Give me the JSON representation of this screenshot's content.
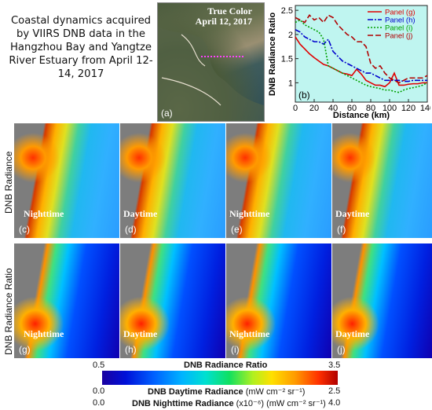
{
  "title": "Coastal dynamics acquired by VIIRS DNB data in the Hangzhou Bay and Yangtze River Estuary from April 12-14, 2017",
  "panel_a": {
    "caption_line1": "True Color",
    "caption_line2": "April 12, 2017",
    "label": "(a)"
  },
  "row_labels": {
    "top": "DNB Radiance",
    "bottom": "DNB Radiance Ratio"
  },
  "tiles": [
    {
      "label": "(c)",
      "text": "Nighttime",
      "style": "radiance"
    },
    {
      "label": "(d)",
      "text": "Daytime",
      "style": "radiance"
    },
    {
      "label": "(e)",
      "text": "Nighttime",
      "style": "radiance"
    },
    {
      "label": "(f)",
      "text": "Daytime",
      "style": "radiance"
    },
    {
      "label": "(g)",
      "text": "Nighttime",
      "style": "ratio"
    },
    {
      "label": "(h)",
      "text": "Daytime",
      "style": "ratio"
    },
    {
      "label": "(i)",
      "text": "Nighttime",
      "style": "ratio"
    },
    {
      "label": "(j)",
      "text": "Daytime",
      "style": "ratio"
    }
  ],
  "colorbar": {
    "ratio_min": "0.5",
    "ratio_label": "DNB Radiance Ratio",
    "ratio_max": "3.5",
    "day_min": "0.0",
    "day_label": "DNB Daytime Radiance",
    "day_units": "(mW cm⁻² sr⁻¹)",
    "day_max": "2.5",
    "night_min": "0.0",
    "night_label": "DNB Nighttime Radiance",
    "night_units": "(x10⁻⁶) (mW cm⁻² sr⁻¹)",
    "night_max": "4.0"
  },
  "chart_data": {
    "type": "line",
    "panel_label": "(b)",
    "xlabel": "Distance (km)",
    "ylabel": "DNB Radiance Ratio",
    "xlim": [
      0,
      140
    ],
    "ylim": [
      0.6,
      2.6
    ],
    "xticks": [
      0,
      20,
      40,
      60,
      80,
      100,
      120,
      140
    ],
    "yticks": [
      1,
      1.5,
      2,
      2.5
    ],
    "legend_position": "top-right",
    "series": [
      {
        "name": "Panel (g)",
        "color": "#e00000",
        "dash": "solid",
        "x": [
          0,
          5,
          10,
          15,
          20,
          25,
          30,
          35,
          40,
          45,
          50,
          55,
          60,
          65,
          70,
          75,
          80,
          85,
          90,
          95,
          100,
          105,
          110,
          115,
          120,
          125,
          130,
          135,
          140
        ],
        "y": [
          1.95,
          1.8,
          1.7,
          1.6,
          1.52,
          1.45,
          1.38,
          1.35,
          1.3,
          1.25,
          1.2,
          1.18,
          1.15,
          1.28,
          1.18,
          1.05,
          1.0,
          0.95,
          0.95,
          0.92,
          1.0,
          1.2,
          0.95,
          0.95,
          0.97,
          0.98,
          0.98,
          1.0,
          1.0
        ]
      },
      {
        "name": "Panel (h)",
        "color": "#0000cc",
        "dash": "dashdot",
        "x": [
          0,
          5,
          10,
          15,
          20,
          25,
          30,
          35,
          40,
          45,
          50,
          55,
          60,
          65,
          70,
          75,
          80,
          85,
          90,
          95,
          100,
          105,
          110,
          115,
          120,
          125,
          130,
          135,
          140
        ],
        "y": [
          2.1,
          2.05,
          1.95,
          1.9,
          1.85,
          1.85,
          1.8,
          1.9,
          1.65,
          1.55,
          1.45,
          1.4,
          1.35,
          1.3,
          1.25,
          1.2,
          1.2,
          1.15,
          1.1,
          1.05,
          1.05,
          1.05,
          1.05,
          1.03,
          1.03,
          1.05,
          1.05,
          1.05,
          1.05
        ]
      },
      {
        "name": "Panel (i)",
        "color": "#00a000",
        "dash": "dotted",
        "x": [
          0,
          5,
          10,
          15,
          20,
          25,
          30,
          35,
          40,
          45,
          50,
          55,
          60,
          65,
          70,
          75,
          80,
          85,
          90,
          95,
          100,
          105,
          110,
          115,
          120,
          125,
          130,
          135,
          140
        ],
        "y": [
          2.25,
          2.3,
          2.2,
          2.15,
          2.1,
          2.05,
          1.9,
          1.35,
          1.3,
          1.25,
          1.2,
          1.15,
          1.1,
          1.05,
          1.0,
          0.95,
          0.92,
          0.9,
          0.88,
          0.85,
          0.85,
          0.82,
          0.8,
          0.85,
          0.88,
          0.9,
          0.92,
          0.95,
          1.0
        ]
      },
      {
        "name": "Panel (j)",
        "color": "#b00000",
        "dash": "dashed",
        "x": [
          0,
          5,
          10,
          15,
          20,
          25,
          30,
          35,
          40,
          45,
          50,
          55,
          60,
          65,
          70,
          75,
          80,
          85,
          90,
          95,
          100,
          105,
          110,
          115,
          120,
          125,
          130,
          135,
          140
        ],
        "y": [
          2.35,
          2.3,
          2.25,
          2.4,
          2.3,
          2.35,
          2.25,
          2.4,
          2.35,
          2.2,
          2.1,
          2.0,
          1.95,
          1.85,
          1.85,
          1.75,
          1.4,
          1.3,
          1.35,
          1.2,
          1.1,
          1.05,
          1.0,
          1.05,
          1.1,
          1.1,
          1.1,
          1.1,
          1.15
        ]
      }
    ]
  }
}
